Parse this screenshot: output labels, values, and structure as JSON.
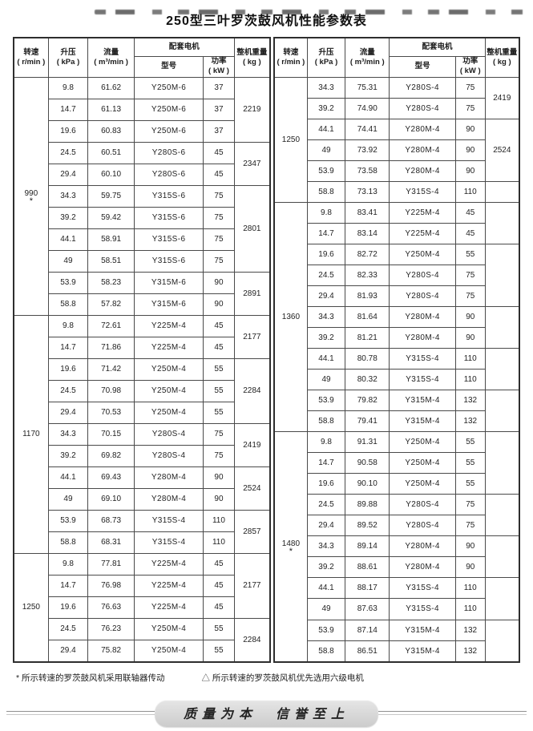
{
  "title": "250型三叶罗茨鼓风机性能参数表",
  "header": {
    "speed": "转速",
    "speed_unit": "( r/min )",
    "pressure": "升压",
    "pressure_unit": "( kPa )",
    "flow": "流量",
    "flow_unit": "( m³/min )",
    "motor": "配套电机",
    "model": "型号",
    "power": "功率",
    "power_unit": "( kW )",
    "weight": "整机重量",
    "weight_unit": "( kg )"
  },
  "tables": {
    "left": {
      "sections": [
        {
          "speed": "990",
          "mark": "*",
          "rows": [
            {
              "p": "9.8",
              "f": "61.62",
              "m": "Y250M-6",
              "kw": "37"
            },
            {
              "p": "14.7",
              "f": "61.13",
              "m": "Y250M-6",
              "kw": "37"
            },
            {
              "p": "19.6",
              "f": "60.83",
              "m": "Y250M-6",
              "kw": "37"
            },
            {
              "p": "24.5",
              "f": "60.51",
              "m": "Y280S-6",
              "kw": "45"
            },
            {
              "p": "29.4",
              "f": "60.10",
              "m": "Y280S-6",
              "kw": "45"
            },
            {
              "p": "34.3",
              "f": "59.75",
              "m": "Y315S-6",
              "kw": "75"
            },
            {
              "p": "39.2",
              "f": "59.42",
              "m": "Y315S-6",
              "kw": "75"
            },
            {
              "p": "44.1",
              "f": "58.91",
              "m": "Y315S-6",
              "kw": "75"
            },
            {
              "p": "49",
              "f": "58.51",
              "m": "Y315S-6",
              "kw": "75"
            },
            {
              "p": "53.9",
              "f": "58.23",
              "m": "Y315M-6",
              "kw": "90"
            },
            {
              "p": "58.8",
              "f": "57.82",
              "m": "Y315M-6",
              "kw": "90"
            }
          ],
          "weights": [
            {
              "span": 3,
              "v": "2219"
            },
            {
              "span": 2,
              "v": "2347"
            },
            {
              "span": 4,
              "v": "2801"
            },
            {
              "span": 2,
              "v": "2891"
            }
          ]
        },
        {
          "speed": "1170",
          "mark": "",
          "rows": [
            {
              "p": "9.8",
              "f": "72.61",
              "m": "Y225M-4",
              "kw": "45"
            },
            {
              "p": "14.7",
              "f": "71.86",
              "m": "Y225M-4",
              "kw": "45"
            },
            {
              "p": "19.6",
              "f": "71.42",
              "m": "Y250M-4",
              "kw": "55"
            },
            {
              "p": "24.5",
              "f": "70.98",
              "m": "Y250M-4",
              "kw": "55"
            },
            {
              "p": "29.4",
              "f": "70.53",
              "m": "Y250M-4",
              "kw": "55"
            },
            {
              "p": "34.3",
              "f": "70.15",
              "m": "Y280S-4",
              "kw": "75"
            },
            {
              "p": "39.2",
              "f": "69.82",
              "m": "Y280S-4",
              "kw": "75"
            },
            {
              "p": "44.1",
              "f": "69.43",
              "m": "Y280M-4",
              "kw": "90"
            },
            {
              "p": "49",
              "f": "69.10",
              "m": "Y280M-4",
              "kw": "90"
            },
            {
              "p": "53.9",
              "f": "68.73",
              "m": "Y315S-4",
              "kw": "110"
            },
            {
              "p": "58.8",
              "f": "68.31",
              "m": "Y315S-4",
              "kw": "110"
            }
          ],
          "weights": [
            {
              "span": 2,
              "v": "2177"
            },
            {
              "span": 3,
              "v": "2284"
            },
            {
              "span": 2,
              "v": "2419"
            },
            {
              "span": 2,
              "v": "2524"
            },
            {
              "span": 2,
              "v": "2857"
            }
          ]
        },
        {
          "speed": "1250",
          "mark": "",
          "rows": [
            {
              "p": "9.8",
              "f": "77.81",
              "m": "Y225M-4",
              "kw": "45"
            },
            {
              "p": "14.7",
              "f": "76.98",
              "m": "Y225M-4",
              "kw": "45"
            },
            {
              "p": "19.6",
              "f": "76.63",
              "m": "Y225M-4",
              "kw": "45"
            },
            {
              "p": "24.5",
              "f": "76.23",
              "m": "Y250M-4",
              "kw": "55"
            },
            {
              "p": "29.4",
              "f": "75.82",
              "m": "Y250M-4",
              "kw": "55"
            }
          ],
          "weights": [
            {
              "span": 3,
              "v": "2177"
            },
            {
              "span": 2,
              "v": "2284"
            }
          ]
        }
      ]
    },
    "right": {
      "sections": [
        {
          "speed": "1250",
          "mark": "",
          "rows": [
            {
              "p": "34.3",
              "f": "75.31",
              "m": "Y280S-4",
              "kw": "75"
            },
            {
              "p": "39.2",
              "f": "74.90",
              "m": "Y280S-4",
              "kw": "75"
            },
            {
              "p": "44.1",
              "f": "74.41",
              "m": "Y280M-4",
              "kw": "90"
            },
            {
              "p": "49",
              "f": "73.92",
              "m": "Y280M-4",
              "kw": "90"
            },
            {
              "p": "53.9",
              "f": "73.58",
              "m": "Y280M-4",
              "kw": "90"
            },
            {
              "p": "58.8",
              "f": "73.13",
              "m": "Y315S-4",
              "kw": "110"
            }
          ],
          "weights": [
            {
              "span": 2,
              "v": "2419"
            },
            {
              "span": 3,
              "v": "2524"
            },
            {
              "span": 1,
              "v": ""
            }
          ]
        },
        {
          "speed": "1360",
          "mark": "",
          "rows": [
            {
              "p": "9.8",
              "f": "83.41",
              "m": "Y225M-4",
              "kw": "45"
            },
            {
              "p": "14.7",
              "f": "83.14",
              "m": "Y225M-4",
              "kw": "45"
            },
            {
              "p": "19.6",
              "f": "82.72",
              "m": "Y250M-4",
              "kw": "55"
            },
            {
              "p": "24.5",
              "f": "82.33",
              "m": "Y280S-4",
              "kw": "75"
            },
            {
              "p": "29.4",
              "f": "81.93",
              "m": "Y280S-4",
              "kw": "75"
            },
            {
              "p": "34.3",
              "f": "81.64",
              "m": "Y280M-4",
              "kw": "90"
            },
            {
              "p": "39.2",
              "f": "81.21",
              "m": "Y280M-4",
              "kw": "90"
            },
            {
              "p": "44.1",
              "f": "80.78",
              "m": "Y315S-4",
              "kw": "110"
            },
            {
              "p": "49",
              "f": "80.32",
              "m": "Y315S-4",
              "kw": "110"
            },
            {
              "p": "53.9",
              "f": "79.82",
              "m": "Y315M-4",
              "kw": "132"
            },
            {
              "p": "58.8",
              "f": "79.41",
              "m": "Y315M-4",
              "kw": "132"
            }
          ],
          "weights": [
            {
              "span": 2,
              "v": ""
            },
            {
              "span": 3,
              "v": ""
            },
            {
              "span": 2,
              "v": ""
            },
            {
              "span": 2,
              "v": ""
            },
            {
              "span": 2,
              "v": ""
            }
          ]
        },
        {
          "speed": "1480",
          "mark": "*",
          "rows": [
            {
              "p": "9.8",
              "f": "91.31",
              "m": "Y250M-4",
              "kw": "55"
            },
            {
              "p": "14.7",
              "f": "90.58",
              "m": "Y250M-4",
              "kw": "55"
            },
            {
              "p": "19.6",
              "f": "90.10",
              "m": "Y250M-4",
              "kw": "55"
            },
            {
              "p": "24.5",
              "f": "89.88",
              "m": "Y280S-4",
              "kw": "75"
            },
            {
              "p": "29.4",
              "f": "89.52",
              "m": "Y280S-4",
              "kw": "75"
            },
            {
              "p": "34.3",
              "f": "89.14",
              "m": "Y280M-4",
              "kw": "90"
            },
            {
              "p": "39.2",
              "f": "88.61",
              "m": "Y280M-4",
              "kw": "90"
            },
            {
              "p": "44.1",
              "f": "88.17",
              "m": "Y315S-4",
              "kw": "110"
            },
            {
              "p": "49",
              "f": "87.63",
              "m": "Y315S-4",
              "kw": "110"
            },
            {
              "p": "53.9",
              "f": "87.14",
              "m": "Y315M-4",
              "kw": "132"
            },
            {
              "p": "58.8",
              "f": "86.51",
              "m": "Y315M-4",
              "kw": "132"
            }
          ],
          "weights": [
            {
              "span": 3,
              "v": ""
            },
            {
              "span": 2,
              "v": ""
            },
            {
              "span": 2,
              "v": ""
            },
            {
              "span": 2,
              "v": ""
            },
            {
              "span": 2,
              "v": ""
            }
          ]
        }
      ]
    }
  },
  "footnotes": [
    "* 所示转速的罗茨鼓风机采用联轴器传动",
    "△ 所示转速的罗茨鼓风机优先选用六级电机"
  ],
  "banner": "质量为本　信誉至上"
}
